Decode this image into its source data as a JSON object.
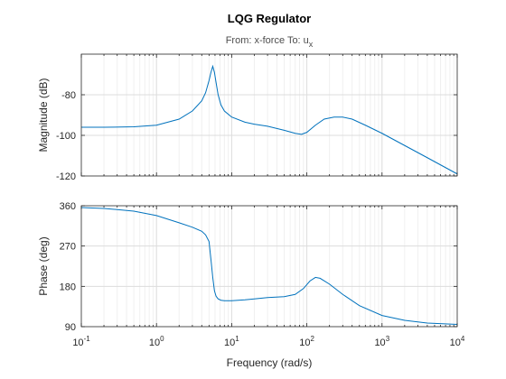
{
  "chart_data": [
    {
      "type": "line",
      "panel": "magnitude",
      "title": "LQG Regulator",
      "subtitle_prefix": "From: x-force  To: u",
      "subtitle_sub": "x",
      "xlabel": "Frequency (rad/s)",
      "ylabel": "Magnitude (dB)",
      "xscale": "log",
      "xlim": [
        0.1,
        10000
      ],
      "ylim": [
        -120,
        -60
      ],
      "yticks": [
        -120,
        -100,
        -80
      ],
      "grid": true,
      "color": "#0072bd",
      "series": [
        {
          "x": [
            0.1,
            0.2,
            0.5,
            1,
            2,
            3,
            4,
            4.5,
            5,
            5.3,
            5.6,
            5.9,
            6.2,
            6.6,
            7.2,
            8,
            10,
            15,
            20,
            30,
            50,
            70,
            85,
            100,
            130,
            170,
            230,
            300,
            400,
            600,
            1000,
            2000,
            4000,
            10000
          ],
          "y": [
            -96,
            -96,
            -95.8,
            -95,
            -92,
            -88,
            -83,
            -79,
            -73,
            -69,
            -66,
            -69,
            -74,
            -80,
            -85,
            -88,
            -91,
            -93.5,
            -94.5,
            -95.5,
            -97.5,
            -99,
            -99.5,
            -98.5,
            -95,
            -92,
            -91,
            -91,
            -92,
            -95,
            -99,
            -105,
            -111,
            -119
          ]
        }
      ]
    },
    {
      "type": "line",
      "panel": "phase",
      "xlabel": "Frequency (rad/s)",
      "ylabel": "Phase (deg)",
      "xscale": "log",
      "xlim": [
        0.1,
        10000
      ],
      "ylim": [
        90,
        360
      ],
      "yticks": [
        90,
        180,
        270,
        360
      ],
      "grid": true,
      "color": "#0072bd",
      "series": [
        {
          "x": [
            0.1,
            0.2,
            0.5,
            1,
            2,
            3,
            4,
            4.5,
            5,
            5.3,
            5.6,
            5.9,
            6.2,
            6.6,
            7.2,
            8,
            10,
            15,
            20,
            30,
            50,
            70,
            90,
            110,
            130,
            150,
            200,
            300,
            500,
            1000,
            2000,
            4000,
            10000
          ],
          "y": [
            356,
            354,
            348,
            338,
            322,
            312,
            303,
            295,
            280,
            240,
            200,
            170,
            158,
            152,
            149,
            148,
            148,
            150,
            152,
            155,
            157,
            162,
            175,
            192,
            200,
            198,
            185,
            162,
            137,
            115,
            104,
            98,
            95
          ]
        }
      ]
    }
  ],
  "x_tick_labels": [
    {
      "base": "10",
      "exp": "-1",
      "value": 0.1
    },
    {
      "base": "10",
      "exp": "0",
      "value": 1
    },
    {
      "base": "10",
      "exp": "1",
      "value": 10
    },
    {
      "base": "10",
      "exp": "2",
      "value": 100
    },
    {
      "base": "10",
      "exp": "3",
      "value": 1000
    },
    {
      "base": "10",
      "exp": "4",
      "value": 10000
    }
  ]
}
